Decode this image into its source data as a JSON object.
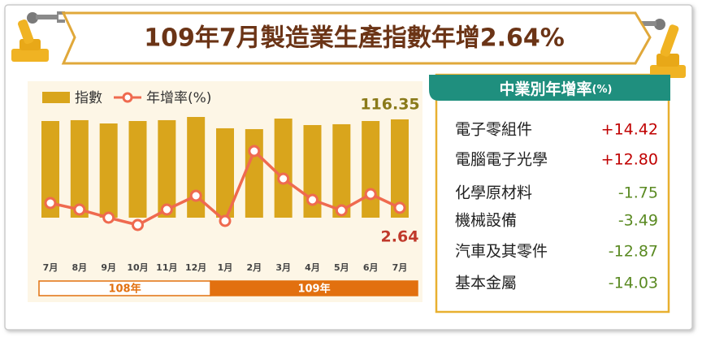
{
  "header": {
    "title": "109年7月製造業生產指數年增2.64%"
  },
  "chart_data": {
    "type": "bar-line",
    "categories": [
      "7月",
      "8月",
      "9月",
      "10月",
      "11月",
      "12月",
      "1月",
      "2月",
      "3月",
      "4月",
      "5月",
      "6月",
      "7月"
    ],
    "year_groups": [
      "108年",
      "109年"
    ],
    "series": [
      {
        "name": "指數",
        "type": "bar",
        "color": "#d9a51c",
        "values": [
          114.4,
          115.4,
          111.5,
          114.4,
          115.4,
          119.2,
          105.8,
          104.8,
          117.3,
          109.6,
          110.6,
          114.4,
          116.35
        ]
      },
      {
        "name": "年增率(%)",
        "type": "line",
        "color": "#ef6a4f",
        "values": [
          4.4,
          2.0,
          -1.0,
          -3.7,
          2.0,
          7.1,
          -2.2,
          23.6,
          13.4,
          5.6,
          1.7,
          7.7,
          2.64
        ]
      }
    ]
  },
  "panel": {
    "title": "中業別年增率",
    "unit": "(%)",
    "rows": [
      [
        "電子零組件",
        "+14.42"
      ],
      [
        "電腦電子光學",
        "+12.80"
      ],
      [
        "化學原材料",
        "-1.75"
      ],
      [
        "機械設備",
        "-3.49"
      ],
      [
        "汽車及其零件",
        "-12.87"
      ],
      [
        "基本金屬",
        "-14.03"
      ]
    ]
  }
}
